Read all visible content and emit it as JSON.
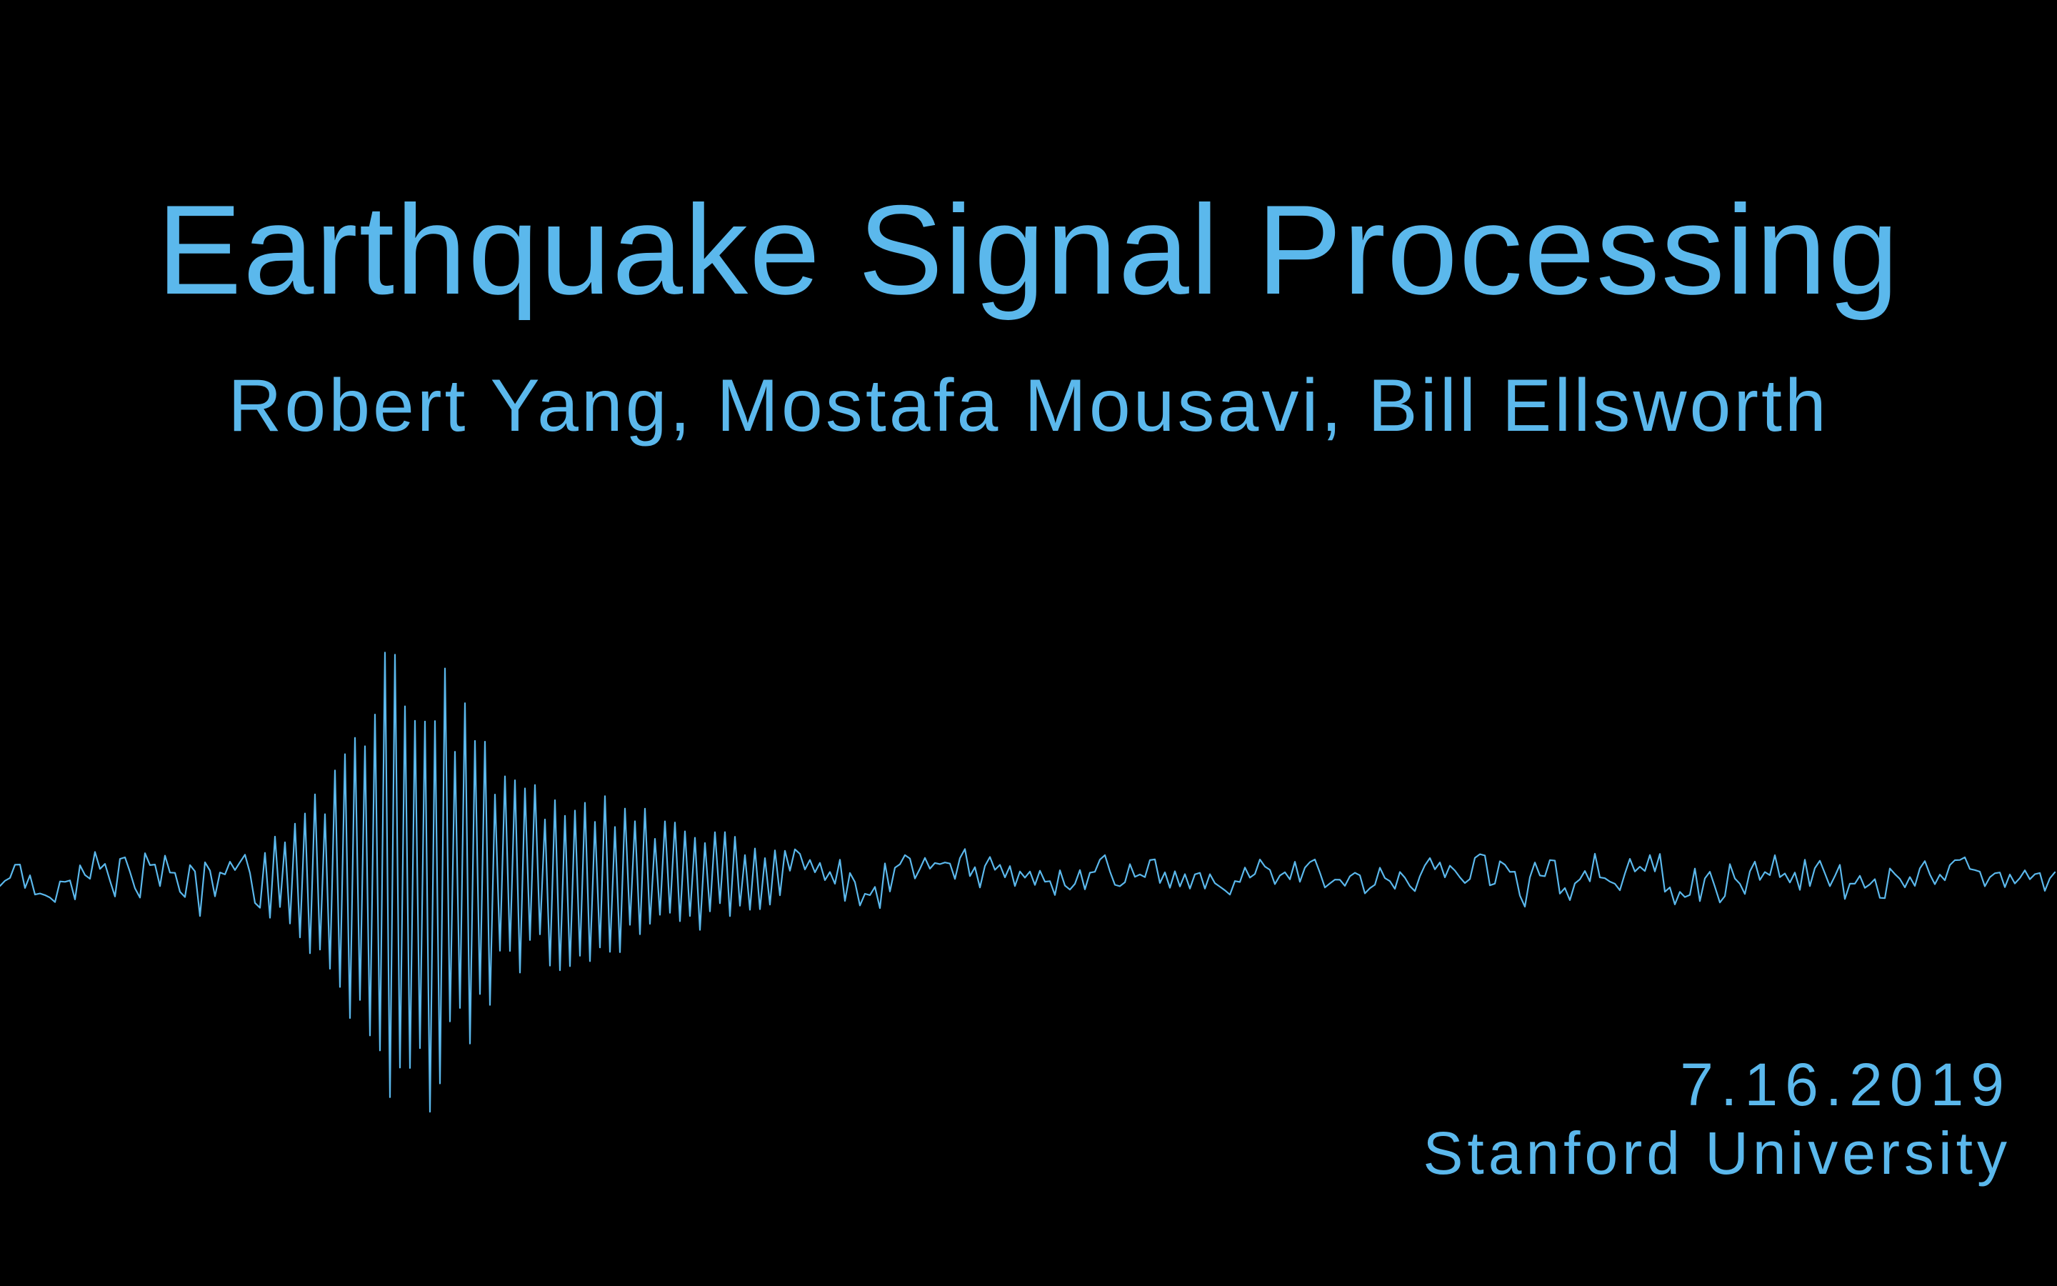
{
  "slide": {
    "title": "Earthquake Signal Processing",
    "authors": "Robert Yang, Mostafa Mousavi, Bill Ellsworth",
    "date": "7.16.2019",
    "institution": "Stanford University"
  },
  "style": {
    "background_color": "#000000",
    "accent_color": "#5bb8ec"
  },
  "illustration": {
    "icon": "seismogram-waveform"
  }
}
